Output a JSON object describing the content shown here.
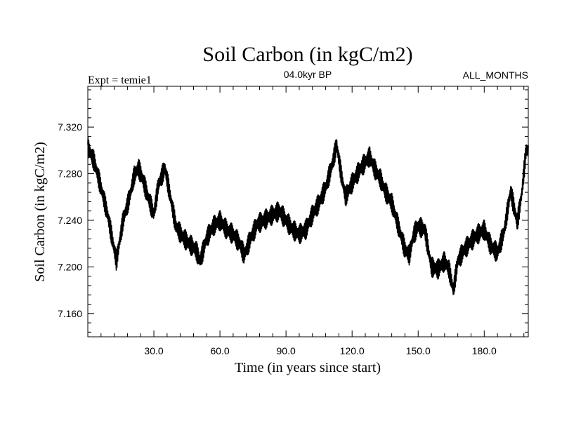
{
  "chart_data": {
    "type": "line",
    "title": "Soil Carbon (in kgC/m2)",
    "subtitle_left": "Expt = temie1",
    "subtitle_center": "04.0kyr BP",
    "subtitle_right": "ALL_MONTHS",
    "xlabel": "Time (in years since start)",
    "ylabel": "Soil Carbon (in kgC/m2)",
    "xlim": [
      0,
      200
    ],
    "ylim": [
      7.14,
      7.355
    ],
    "x_ticks": [
      30,
      60,
      90,
      120,
      150,
      180
    ],
    "x_tick_labels": [
      "30.0",
      "60.0",
      "90.0",
      "120.0",
      "150.0",
      "180.0"
    ],
    "y_ticks": [
      7.16,
      7.2,
      7.24,
      7.28,
      7.32
    ],
    "y_tick_labels": [
      "7.160",
      "7.200",
      "7.240",
      "7.280",
      "7.320"
    ],
    "grid": false,
    "line_color": "#000000",
    "series": [
      {
        "x": [
          0,
          3,
          6,
          9,
          11,
          13,
          16,
          19,
          21,
          23,
          25,
          27,
          30,
          32,
          35,
          37,
          40,
          43,
          46,
          49,
          51,
          54,
          57,
          60,
          63,
          66,
          69,
          71,
          74,
          77,
          80,
          84,
          87,
          90,
          93,
          96,
          99,
          102,
          105,
          108,
          111,
          113,
          115,
          117,
          120,
          123,
          126,
          128,
          130,
          133,
          135,
          138,
          141,
          144,
          146,
          148,
          150,
          153,
          156,
          159,
          162,
          164,
          166,
          168,
          171,
          174,
          177,
          180,
          183,
          186,
          189,
          192,
          195,
          197,
          199
        ],
        "y": [
          7.303,
          7.29,
          7.268,
          7.245,
          7.225,
          7.205,
          7.24,
          7.26,
          7.278,
          7.285,
          7.275,
          7.262,
          7.245,
          7.27,
          7.285,
          7.265,
          7.235,
          7.226,
          7.22,
          7.215,
          7.205,
          7.225,
          7.235,
          7.24,
          7.232,
          7.228,
          7.22,
          7.21,
          7.225,
          7.237,
          7.24,
          7.245,
          7.248,
          7.24,
          7.232,
          7.228,
          7.232,
          7.245,
          7.255,
          7.268,
          7.288,
          7.305,
          7.28,
          7.26,
          7.272,
          7.282,
          7.29,
          7.295,
          7.285,
          7.275,
          7.265,
          7.255,
          7.235,
          7.215,
          7.21,
          7.228,
          7.235,
          7.232,
          7.2,
          7.198,
          7.205,
          7.198,
          7.18,
          7.205,
          7.215,
          7.222,
          7.228,
          7.232,
          7.218,
          7.212,
          7.23,
          7.265,
          7.238,
          7.262,
          7.3
        ]
      }
    ]
  }
}
